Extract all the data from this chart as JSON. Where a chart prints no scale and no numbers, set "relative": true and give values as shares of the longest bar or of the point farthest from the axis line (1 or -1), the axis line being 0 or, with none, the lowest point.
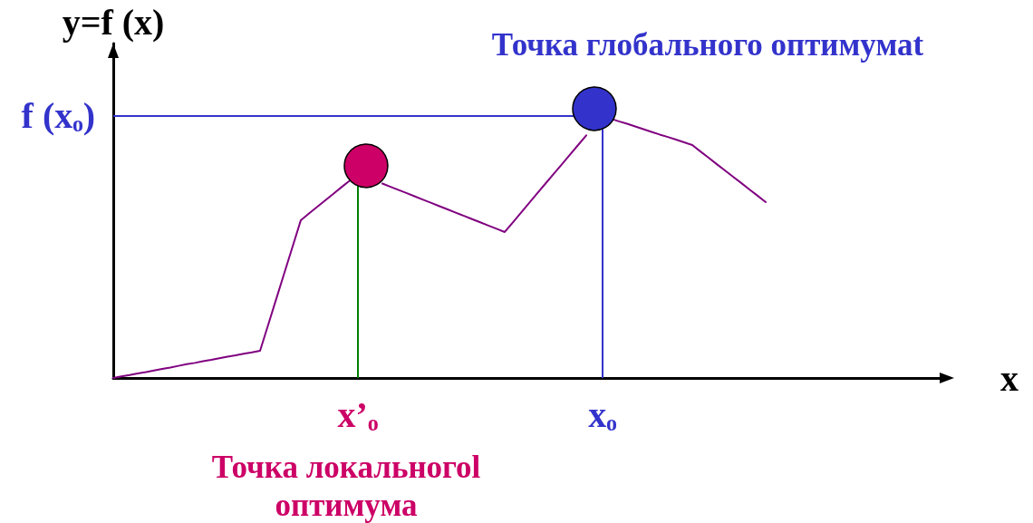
{
  "chart_data": {
    "type": "line",
    "relative": true,
    "tick_labels": "x",
    "xlabel": "x",
    "ylabel": "y=f (x)",
    "categories": [
      null,
      null,
      null,
      null,
      null,
      null,
      null,
      null,
      null,
      null,
      null,
      null,
      null,
      null,
      null,
      null,
      null,
      null,
      null,
      null,
      null,
      null,
      null,
      null,
      null,
      null,
      null,
      null,
      null,
      null,
      "x’ₒ",
      null,
      null,
      null,
      null,
      null,
      null,
      null,
      null,
      null,
      null,
      null,
      null,
      null,
      null,
      null,
      null,
      null,
      null,
      null,
      null,
      null,
      null,
      null,
      null,
      null,
      null,
      null,
      null,
      null,
      "xₒ",
      null,
      null,
      null,
      null,
      null,
      null,
      null,
      null,
      null,
      null,
      null,
      null,
      null,
      null,
      null,
      null,
      null,
      null,
      null,
      null,
      null,
      null,
      null,
      null,
      null,
      null,
      null,
      null,
      null,
      null,
      null,
      null,
      null,
      null,
      null,
      null,
      null,
      null,
      null,
      null,
      null,
      null
    ],
    "series": [
      {
        "color": "#800080",
        "values": [
          0,
          0.006,
          0.011,
          0.017,
          0.022,
          0.028,
          0.034,
          0.039,
          0.045,
          0.051,
          0.056,
          0.062,
          0.067,
          0.073,
          0.079,
          0.084,
          0.09,
          0.095,
          0.101,
          0.198,
          0.295,
          0.392,
          0.489,
          0.586,
          0.611,
          0.635,
          0.66,
          0.684,
          0.709,
          0.733,
          null,
          null,
          null,
          0.722,
          0.71,
          0.698,
          0.686,
          0.674,
          0.662,
          0.65,
          0.638,
          0.626,
          0.614,
          0.602,
          0.59,
          0.578,
          0.566,
          0.554,
          0.542,
          0.578,
          0.614,
          0.65,
          0.686,
          0.722,
          0.758,
          0.793,
          0.829,
          0.865,
          0.901,
          null,
          null,
          0.963,
          0.953,
          0.944,
          0.934,
          0.924,
          0.914,
          0.904,
          0.895,
          0.885,
          0.875,
          0.865,
          0.841,
          0.818,
          0.794,
          0.771,
          0.747,
          0.724,
          0.7,
          0.677,
          0.653,
          null,
          null,
          null,
          null,
          null,
          null,
          null,
          null,
          null,
          null,
          null,
          null,
          null,
          null,
          null,
          null,
          null,
          null,
          null,
          null,
          null,
          null
        ]
      },
      {
        "type": "scatter",
        "marker": "circle",
        "values": [
          null,
          null,
          null,
          null,
          null,
          null,
          null,
          null,
          null,
          null,
          null,
          null,
          null,
          null,
          null,
          null,
          null,
          null,
          null,
          null,
          null,
          null,
          null,
          null,
          null,
          null,
          null,
          null,
          null,
          null,
          null,
          0.788,
          null,
          null,
          null,
          null,
          null,
          null,
          null,
          null,
          null,
          null,
          null,
          null,
          null,
          null,
          null,
          null,
          null,
          null,
          null,
          null,
          null,
          null,
          null,
          null,
          null,
          null,
          null,
          1,
          null,
          null,
          null,
          null,
          null,
          null,
          null,
          null,
          null,
          null,
          null,
          null,
          null,
          null,
          null,
          null,
          null,
          null,
          null,
          null,
          null,
          null,
          null,
          null,
          null,
          null,
          null,
          null,
          null,
          null,
          null,
          null,
          null,
          null,
          null,
          null,
          null,
          null,
          null,
          null,
          null,
          null,
          null
        ],
        "colors": [
          null,
          null,
          null,
          null,
          null,
          null,
          null,
          null,
          null,
          null,
          null,
          null,
          null,
          null,
          null,
          null,
          null,
          null,
          null,
          null,
          null,
          null,
          null,
          null,
          null,
          null,
          null,
          null,
          null,
          null,
          null,
          "#cc0066",
          null,
          null,
          null,
          null,
          null,
          null,
          null,
          null,
          null,
          null,
          null,
          null,
          null,
          null,
          null,
          null,
          null,
          null,
          null,
          null,
          null,
          null,
          null,
          null,
          null,
          null,
          null,
          "#3333cc",
          null,
          null,
          null,
          null,
          null,
          null,
          null,
          null,
          null,
          null,
          null,
          null,
          null,
          null,
          null,
          null,
          null,
          null,
          null,
          null,
          null,
          null,
          null,
          null,
          null,
          null,
          null,
          null,
          null,
          null,
          null,
          null,
          null,
          null,
          null,
          null,
          null,
          null,
          null,
          null,
          null,
          null,
          null
        ]
      }
    ],
    "ref_lines": [
      {
        "axis": "x",
        "value": "x’ₒ",
        "color": "#008000"
      },
      {
        "axis": "x",
        "value": "xₒ",
        "color": "#3333cc"
      },
      {
        "axis": "y",
        "value": 0.973,
        "label": "f (xₒ)",
        "color": "#3333cc"
      }
    ],
    "annotations": [
      {
        "text": "Точка глобального оптимумаt",
        "x": "xₒ",
        "y": 0.973
      },
      "Точка локальногоl оптимума"
    ]
  }
}
